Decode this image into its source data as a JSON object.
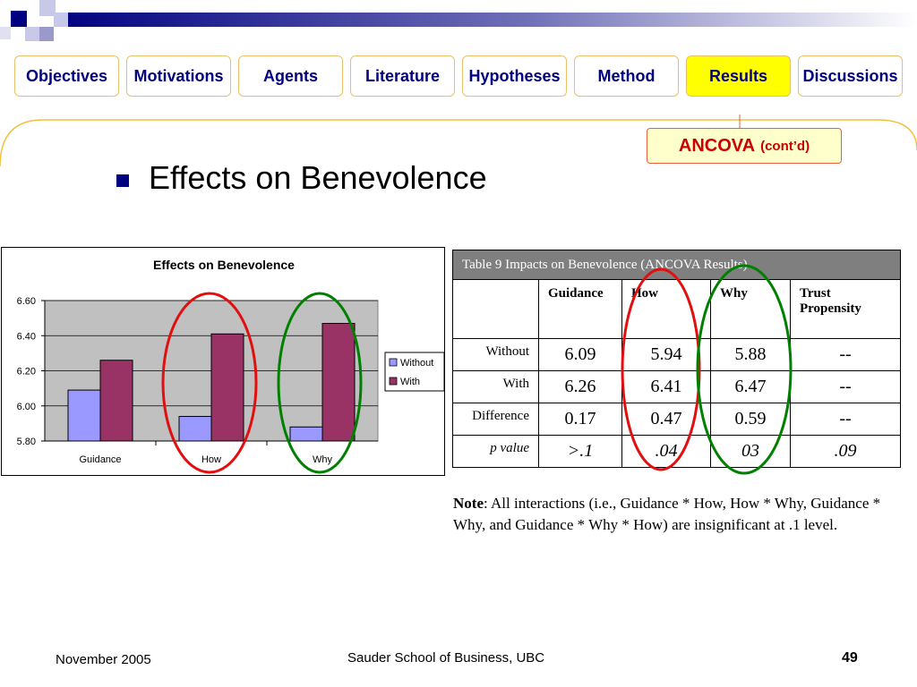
{
  "nav": {
    "tabs": [
      {
        "label": "Objectives",
        "active": false
      },
      {
        "label": "Motivations",
        "active": false
      },
      {
        "label": "Agents",
        "active": false
      },
      {
        "label": "Literature",
        "active": false
      },
      {
        "label": "Hypotheses",
        "active": false
      },
      {
        "label": "Method",
        "active": false
      },
      {
        "label": "Results",
        "active": true
      },
      {
        "label": "Discussions",
        "active": false
      }
    ]
  },
  "badge": {
    "main": "ANCOVA",
    "sub": "(cont’d)"
  },
  "heading": "Effects on Benevolence",
  "chart_data": {
    "type": "bar",
    "title": "Effects on Benevolence",
    "categories": [
      "Guidance",
      "How",
      "Why"
    ],
    "series": [
      {
        "name": "Without",
        "color": "#9999ff",
        "values": [
          6.09,
          5.94,
          5.88
        ]
      },
      {
        "name": "With",
        "color": "#993366",
        "values": [
          6.26,
          6.41,
          6.47
        ]
      }
    ],
    "ylim": [
      5.8,
      6.6
    ],
    "yticks": [
      "6.60",
      "6.40",
      "6.20",
      "6.00",
      "5.80"
    ],
    "ytick_values": [
      6.6,
      6.4,
      6.2,
      6.0,
      5.8
    ],
    "legend_placement": "right",
    "plot_background": "#c0c0c0",
    "grid": true
  },
  "table": {
    "caption": "Table 9 Impacts on Benevolence (ANCOVA Results)",
    "columns": [
      "",
      "Guidance",
      "How",
      "Why",
      "Trust Propensity"
    ],
    "rows": [
      {
        "label": "Without",
        "values": [
          "6.09",
          "5.94",
          "5.88",
          "--"
        ]
      },
      {
        "label": "With",
        "values": [
          "6.26",
          "6.41",
          "6.47",
          "--"
        ]
      },
      {
        "label": "Difference",
        "values": [
          "0.17",
          "0.47",
          "0.59",
          "--"
        ]
      },
      {
        "label": "p value",
        "values": [
          ">.1",
          ".04",
          "03",
          ".09"
        ]
      }
    ]
  },
  "note": {
    "label": "Note",
    "text": ": All interactions (i.e., Guidance * How, How * Why, Guidance * Why, and Guidance * Why * How) are insignificant at .1 level."
  },
  "footer": {
    "date": "November 2005",
    "school": "Sauder School of Business, UBC",
    "page": "49"
  },
  "colors": {
    "nav_text": "#000080",
    "active_tab": "#ffff00",
    "badge_text": "#cc0000",
    "highlight_red": "#e01010",
    "highlight_green": "#008000"
  }
}
